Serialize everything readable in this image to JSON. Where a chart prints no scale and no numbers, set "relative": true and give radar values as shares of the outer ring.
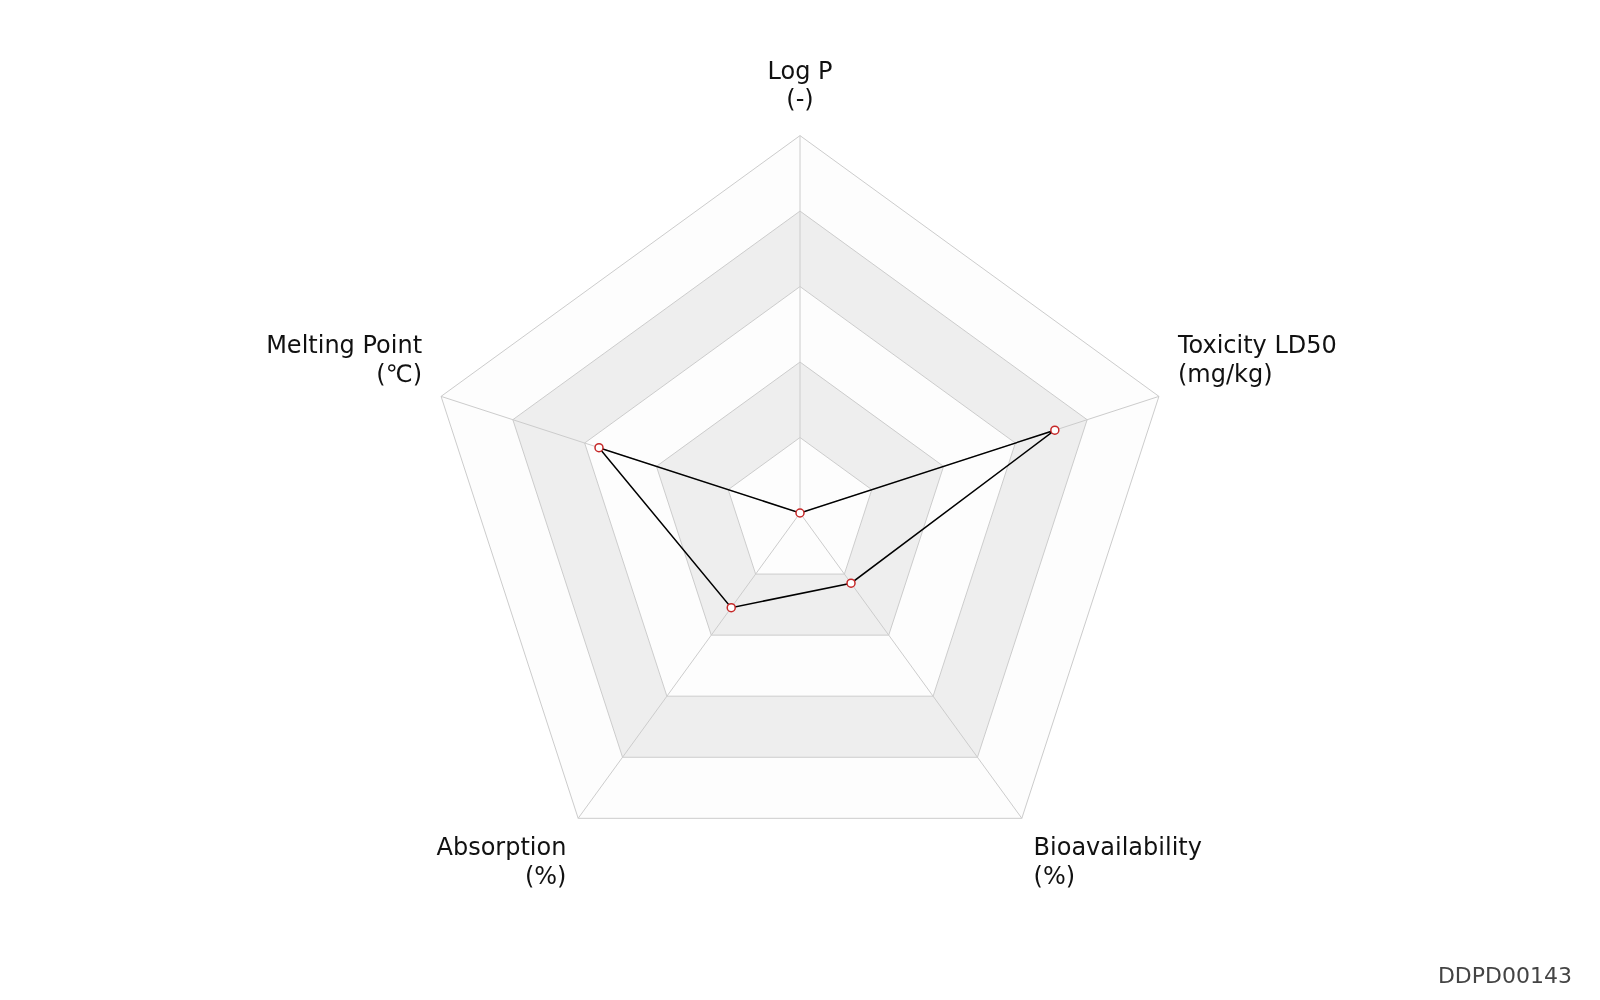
{
  "chart_data": {
    "type": "radar",
    "relative": true,
    "categories": [
      "Log P\n(-)",
      "Toxicity LD50\n(mg/kg)",
      "Bioavailability\n(%)",
      "Absorption\n(%)",
      "Melting Point\n(℃)"
    ],
    "series": [
      {
        "color": "#000000",
        "values": [
          0,
          0.71,
          0.23,
          0.31,
          0.56
        ]
      }
    ],
    "marker": "circle",
    "grid": true,
    "legend": false,
    "annotations": [
      "DDPD00143"
    ]
  }
}
